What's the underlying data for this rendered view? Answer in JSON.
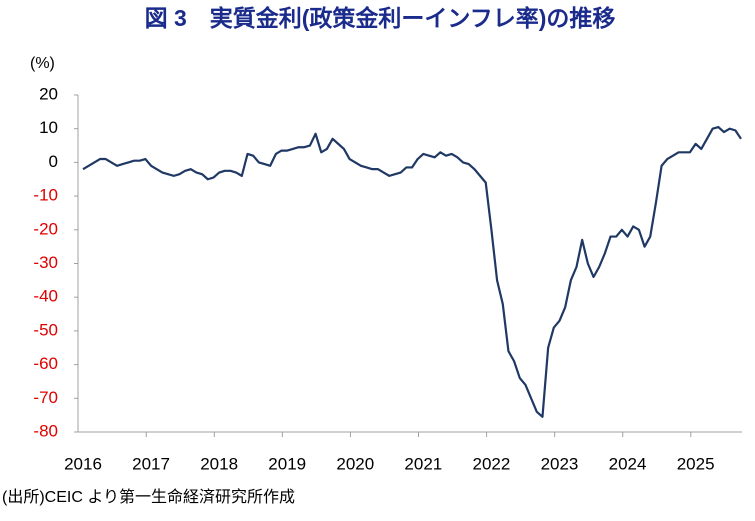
{
  "chart_data": {
    "type": "line",
    "title": "図 3　実質金利(政策金利ーインフレ率)の推移",
    "y_unit": "(%)",
    "source": "(出所)CEIC より第一生命経済研究所作成",
    "categories": [
      "2016",
      null,
      null,
      null,
      null,
      null,
      null,
      null,
      null,
      null,
      null,
      null,
      "2017",
      null,
      null,
      null,
      null,
      null,
      null,
      null,
      null,
      null,
      null,
      null,
      "2018",
      null,
      null,
      null,
      null,
      null,
      null,
      null,
      null,
      null,
      null,
      null,
      "2019",
      null,
      null,
      null,
      null,
      null,
      null,
      null,
      null,
      null,
      null,
      null,
      "2020",
      null,
      null,
      null,
      null,
      null,
      null,
      null,
      null,
      null,
      null,
      null,
      "2021",
      null,
      null,
      null,
      null,
      null,
      null,
      null,
      null,
      null,
      null,
      null,
      "2022",
      null,
      null,
      null,
      null,
      null,
      null,
      null,
      null,
      null,
      null,
      null,
      "2023",
      null,
      null,
      null,
      null,
      null,
      null,
      null,
      null,
      null,
      null,
      null,
      "2024",
      null,
      null,
      null,
      null,
      null,
      null,
      null,
      null,
      null,
      null,
      null,
      "2025",
      null,
      null,
      null,
      null,
      null,
      null,
      null,
      null
    ],
    "values": [
      -2,
      -1,
      0,
      1,
      1,
      0,
      -1,
      -0.5,
      0,
      0.5,
      0.5,
      1,
      -1,
      -2,
      -3,
      -3.5,
      -4,
      -3.5,
      -2.5,
      -2,
      -3,
      -3.5,
      -5,
      -4.5,
      -3,
      -2.5,
      -2.5,
      -3,
      -4,
      2.5,
      2,
      0,
      -0.5,
      -1,
      2.5,
      3.5,
      3.5,
      4,
      4.5,
      4.5,
      5,
      8.5,
      3,
      4,
      7,
      5.5,
      4,
      1,
      0,
      -1,
      -1.5,
      -2,
      -2,
      -3,
      -4,
      -3.5,
      -3,
      -1.5,
      -1.5,
      1,
      2.5,
      2,
      1.5,
      3,
      2,
      2.5,
      1.5,
      0,
      -0.5,
      -2,
      -4,
      -6,
      -20,
      -35,
      -42,
      -56,
      -59,
      -64,
      -66,
      -70,
      -74,
      -75.5,
      -55,
      -49,
      -47,
      -43,
      -35,
      -31,
      -23,
      -30,
      -34,
      -31,
      -27,
      -22,
      -22,
      -20,
      -22,
      -19,
      -20,
      -25,
      -22,
      -12,
      -1,
      1,
      2,
      3,
      3,
      3,
      5.5,
      4,
      7,
      10,
      10.5,
      9,
      10,
      9.5,
      7
    ],
    "color": "#1f3864",
    "ylim": [
      -80,
      20
    ],
    "yticks": [
      -80,
      -70,
      -60,
      -50,
      -40,
      -30,
      -20,
      -10,
      0,
      10,
      20
    ],
    "tick_color": "#000000",
    "negative_tick_color": "#e00000",
    "title_color": "#1a2b8c",
    "grid": false
  }
}
